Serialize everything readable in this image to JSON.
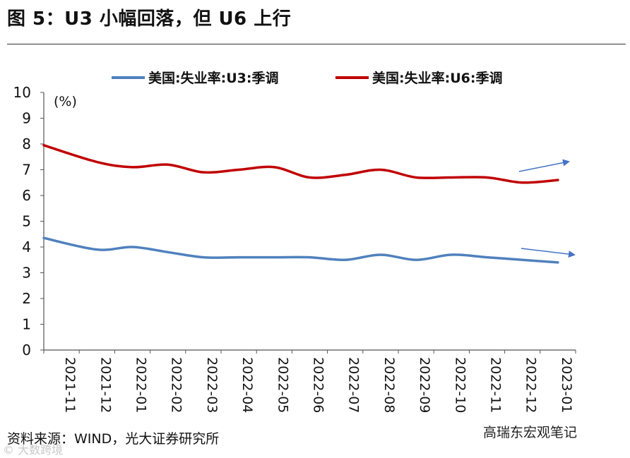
{
  "header": {
    "title": "图 5：U3 小幅回落，但 U6 上行"
  },
  "chart_data": {
    "type": "line",
    "categories": [
      "2021-11",
      "2021-12",
      "2022-01",
      "2022-02",
      "2022-03",
      "2022-04",
      "2022-05",
      "2022-06",
      "2022-07",
      "2022-08",
      "2022-09",
      "2022-10",
      "2022-11",
      "2022-12",
      "2023-01"
    ],
    "series": [
      {
        "name": "美国:失业率:U3:季调",
        "color": "#4f81bd",
        "values": [
          4.35,
          3.9,
          4.0,
          3.8,
          3.6,
          3.6,
          3.6,
          3.6,
          3.5,
          3.7,
          3.5,
          3.7,
          3.6,
          3.5,
          3.4
        ]
      },
      {
        "name": "美国:失业率:U6:季调",
        "color": "#c00000",
        "values": [
          7.95,
          7.3,
          7.1,
          7.2,
          6.9,
          7.0,
          7.1,
          6.7,
          6.8,
          7.0,
          6.7,
          6.7,
          6.7,
          6.5,
          6.6
        ]
      }
    ],
    "ylim": [
      0,
      10
    ],
    "yticks": [
      0,
      1,
      2,
      3,
      4,
      5,
      6,
      7,
      8,
      9,
      10
    ],
    "ylabel": "(%)",
    "xlabel": "",
    "legend": "top",
    "annotations": [
      "arrow-up-near-U6-end",
      "arrow-down-near-U3-end"
    ]
  },
  "footer": {
    "source": "资料来源：WIND，光大证券研究所",
    "watermark_left": "© 大数跨境",
    "watermark_right": "高瑞东宏观笔记"
  },
  "colors": {
    "u3": "#4f81bd",
    "u6": "#c00000",
    "arrow": "#4472c4"
  }
}
